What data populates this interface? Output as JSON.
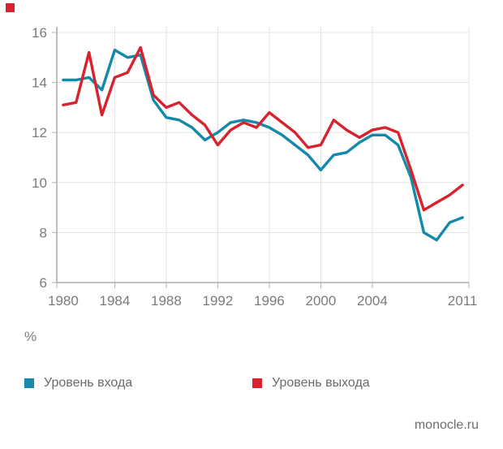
{
  "page": {
    "background": "#ffffff"
  },
  "branding": {
    "logo_square_color": "#d8232f",
    "source": "monocle.ru"
  },
  "chart_data": {
    "type": "line",
    "x": [
      1980,
      1981,
      1982,
      1983,
      1984,
      1985,
      1986,
      1987,
      1988,
      1989,
      1990,
      1991,
      1992,
      1993,
      1994,
      1995,
      1996,
      1997,
      1998,
      1999,
      2000,
      2001,
      2002,
      2003,
      2004,
      2005,
      2006,
      2007,
      2008,
      2009,
      2010,
      2011
    ],
    "series": [
      {
        "name": "Уровень входа",
        "color": "#1589a9",
        "values": [
          14.1,
          14.1,
          14.2,
          13.7,
          15.3,
          15.0,
          15.1,
          13.3,
          12.6,
          12.5,
          12.2,
          11.7,
          12.0,
          12.4,
          12.5,
          12.4,
          12.2,
          11.9,
          11.5,
          11.1,
          10.5,
          11.1,
          11.2,
          11.6,
          11.9,
          11.9,
          11.5,
          10.2,
          8.0,
          7.7,
          8.4,
          8.6
        ]
      },
      {
        "name": "Уровень выхода",
        "color": "#d8232f",
        "values": [
          13.1,
          13.2,
          15.2,
          12.7,
          14.2,
          14.4,
          15.4,
          13.5,
          13.0,
          13.2,
          12.7,
          12.3,
          11.5,
          12.1,
          12.4,
          12.2,
          12.8,
          12.4,
          12.0,
          11.4,
          11.5,
          12.5,
          12.1,
          11.8,
          12.1,
          12.2,
          12.0,
          10.5,
          8.9,
          9.2,
          9.5,
          9.9
        ]
      }
    ],
    "title": "",
    "xlabel": "",
    "ylabel": "%",
    "unit_label": "%",
    "x_tick_labels": [
      "1980",
      "1984",
      "1988",
      "1992",
      "1996",
      "2000",
      "2004",
      "2011"
    ],
    "x_tick_years": [
      1980,
      1984,
      1988,
      1992,
      1996,
      2000,
      2004,
      2011
    ],
    "y_ticks": [
      6,
      8,
      10,
      12,
      14,
      16
    ],
    "ylim": [
      6,
      16
    ],
    "xlim": [
      1979.5,
      2011.5
    ],
    "grid": true,
    "legend_position": "bottom"
  },
  "legend": {
    "items": [
      {
        "label": "Уровень входа",
        "color": "#1589a9"
      },
      {
        "label": "Уровень выхода",
        "color": "#d8232f"
      }
    ]
  }
}
